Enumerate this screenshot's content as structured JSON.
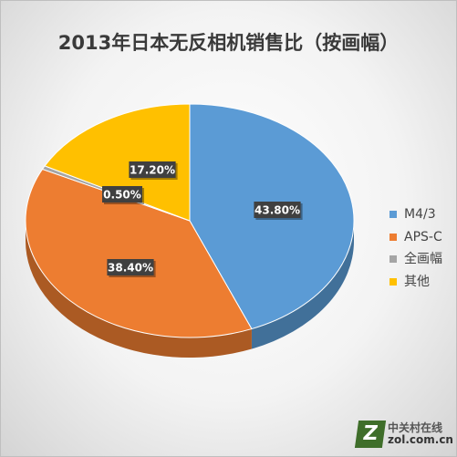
{
  "chart_data": {
    "type": "pie",
    "title": "2013年日本无反相机销售比（按画幅）",
    "slices": [
      {
        "label": "M4/3",
        "value": 43.8,
        "display": "43.80%",
        "color": "#5b9bd5"
      },
      {
        "label": "APS-C",
        "value": 38.4,
        "display": "38.40%",
        "color": "#ed7d31"
      },
      {
        "label": "全画幅",
        "value": 0.5,
        "display": "0.50%",
        "color": "#a5a5a5"
      },
      {
        "label": "其他",
        "value": 17.2,
        "display": "17.20%",
        "color": "#ffc000"
      }
    ],
    "legend_position": "right",
    "style": "3d-tilted"
  },
  "watermark": {
    "icon_letter": "Z",
    "line1": "中关村在线",
    "line2": "zol.com.cn"
  }
}
